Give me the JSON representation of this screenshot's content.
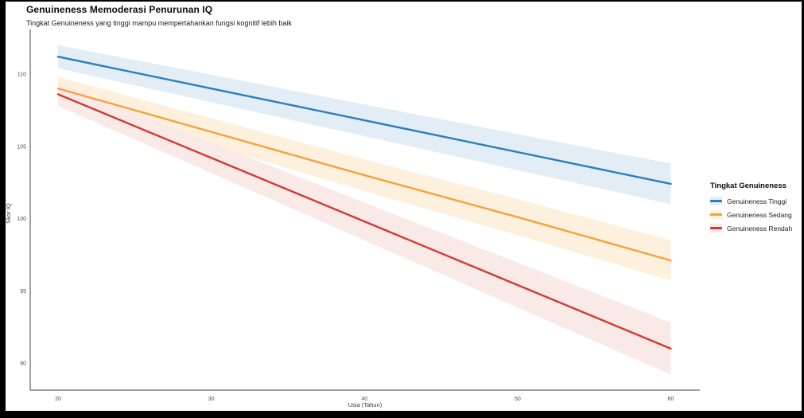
{
  "header": {
    "title": "Genuineness Memoderasi Penurunan IQ",
    "subtitle": "Tingkat Genuineness yang tinggi mampu mempertahankan fungsi kognitif lebih baik"
  },
  "legend": {
    "title": "Tingkat Genuineness",
    "position": "right",
    "items": [
      {
        "label": "Genuineness Tinggi",
        "line_color": "#2d7dbb",
        "band_color": "#e3edf6"
      },
      {
        "label": "Genuineness Sedang",
        "line_color": "#f6a13a",
        "band_color": "#fdf1dd"
      },
      {
        "label": "Genuineness Rendah",
        "line_color": "#d13b32",
        "band_color": "#f9e9e7"
      }
    ]
  },
  "chart_data": {
    "type": "line",
    "title": "Genuineness Memoderasi Penurunan IQ",
    "subtitle": "Tingkat Genuineness yang tinggi mampu mempertahankan fungsi kognitif lebih baik",
    "xlabel": "Usia (Tahun)",
    "ylabel": "Skor IQ",
    "x": [
      20,
      30,
      40,
      50,
      60
    ],
    "x_ticks": [
      20,
      30,
      40,
      50,
      60
    ],
    "y_ticks": [
      90,
      95,
      100,
      105,
      110
    ],
    "xlim": [
      18,
      62
    ],
    "ylim": [
      88,
      113
    ],
    "grid": false,
    "legend_position": "right",
    "series": [
      {
        "name": "Genuineness Tinggi",
        "color": "#2d7dbb",
        "band_color": "#e3edf6",
        "values": [
          111.2,
          109.0,
          106.8,
          104.6,
          102.4
        ],
        "ci_halfwidth": [
          0.8,
          0.95,
          1.1,
          1.25,
          1.4
        ]
      },
      {
        "name": "Genuineness Sedang",
        "color": "#f6a13a",
        "band_color": "#fdf1dd",
        "values": [
          109.0,
          106.0,
          103.0,
          100.1,
          97.1
        ],
        "ci_halfwidth": [
          0.8,
          0.95,
          1.1,
          1.25,
          1.4
        ]
      },
      {
        "name": "Genuineness Rendah",
        "color": "#d13b32",
        "band_color": "#f9e9e7",
        "values": [
          108.6,
          104.2,
          99.8,
          95.4,
          91.0
        ],
        "ci_halfwidth": [
          0.8,
          1.05,
          1.3,
          1.55,
          1.8
        ]
      }
    ],
    "axis": {
      "line_color": "#3f3f3f",
      "tick_label_color": "#4d4d4d"
    }
  }
}
